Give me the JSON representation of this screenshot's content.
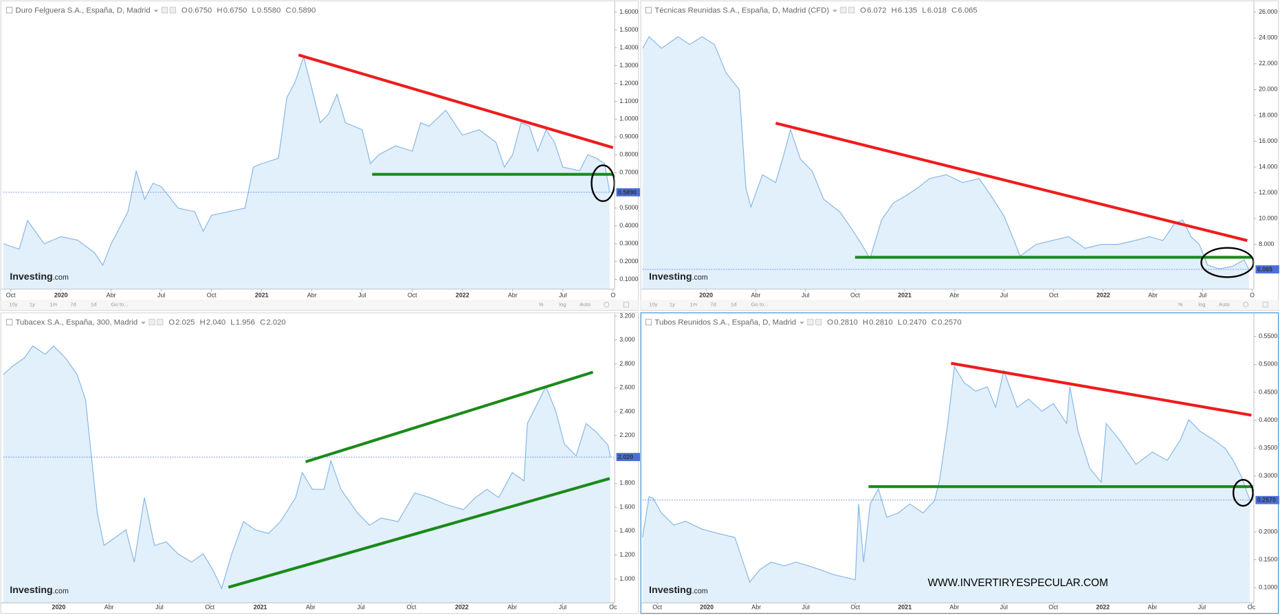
{
  "chart_data": [
    {
      "type": "area",
      "title": "Duro Felguera S.A., España, D, Madrid",
      "ohlc": [
        {
          "name": "O",
          "value": 0.675,
          "label": "0.6750"
        },
        {
          "name": "H",
          "value": 0.675,
          "label": "0.6750"
        },
        {
          "name": "L",
          "value": 0.558,
          "label": "0.5580"
        },
        {
          "name": "C",
          "value": 0.589,
          "label": "0.5890"
        }
      ],
      "color": "#86b6e6",
      "fill": "#e2f0fb",
      "x": [
        -0.45,
        0.5,
        1,
        2,
        3,
        4,
        5,
        5.5,
        6,
        7,
        7.5,
        8,
        8.5,
        9,
        10,
        11,
        11.5,
        12,
        13,
        14,
        14.5,
        15,
        16,
        16.5,
        17,
        17.5,
        18,
        18.5,
        19,
        19.5,
        20,
        21,
        21.5,
        22,
        23,
        24,
        24.5,
        25,
        26,
        27,
        28,
        29,
        29.5,
        30,
        30.5,
        31,
        31.5,
        32,
        32.5,
        33,
        34,
        34.5,
        35,
        35.5,
        35.8
      ],
      "values": [
        0.3,
        0.27,
        0.43,
        0.3,
        0.34,
        0.32,
        0.25,
        0.18,
        0.3,
        0.48,
        0.71,
        0.55,
        0.64,
        0.62,
        0.5,
        0.48,
        0.37,
        0.46,
        0.48,
        0.5,
        0.73,
        0.75,
        0.78,
        1.12,
        1.21,
        1.35,
        1.17,
        0.98,
        1.03,
        1.14,
        0.98,
        0.94,
        0.75,
        0.8,
        0.85,
        0.82,
        0.98,
        0.96,
        1.05,
        0.91,
        0.94,
        0.87,
        0.73,
        0.8,
        0.98,
        0.96,
        0.82,
        0.94,
        0.87,
        0.73,
        0.71,
        0.8,
        0.78,
        0.75,
        0.589
      ],
      "xlim": [
        -0.45,
        36.05
      ],
      "xticks": [
        {
          "value": 0,
          "label": "Oct"
        },
        {
          "value": 3,
          "label": "2020"
        },
        {
          "value": 6,
          "label": "Abr"
        },
        {
          "value": 9,
          "label": "Jul"
        },
        {
          "value": 12,
          "label": "Oct"
        },
        {
          "value": 15,
          "label": "2021"
        },
        {
          "value": 18,
          "label": "Abr"
        },
        {
          "value": 21,
          "label": "Jul"
        },
        {
          "value": 24,
          "label": "Oct"
        },
        {
          "value": 27,
          "label": "2022"
        },
        {
          "value": 30,
          "label": "Abr"
        },
        {
          "value": 33,
          "label": "Jul"
        },
        {
          "value": 36,
          "label": "O"
        }
      ],
      "ylim": [
        0.045,
        1.646
      ],
      "yticks": [
        {
          "value": 0.1,
          "label": "0.1000"
        },
        {
          "value": 0.2,
          "label": "0.2000"
        },
        {
          "value": 0.3,
          "label": "0.3000"
        },
        {
          "value": 0.4,
          "label": "0.4000"
        },
        {
          "value": 0.5,
          "label": "0.5000"
        },
        {
          "value": 0.7,
          "label": "0.7000"
        },
        {
          "value": 0.8,
          "label": "0.8000"
        },
        {
          "value": 0.9,
          "label": "0.9000"
        },
        {
          "value": 1.0,
          "label": "1.0000"
        },
        {
          "value": 1.1,
          "label": "1.1000"
        },
        {
          "value": 1.2,
          "label": "1.2000"
        },
        {
          "value": 1.3,
          "label": "1.3000"
        },
        {
          "value": 1.4,
          "label": "1.4000"
        },
        {
          "value": 1.5,
          "label": "1.5000"
        },
        {
          "value": 1.6,
          "label": "1.6000"
        }
      ],
      "last": {
        "value": 0.589,
        "label": "0.5890"
      },
      "trendlines": [
        {
          "color": "#ee1c1c",
          "x": [
            17.2,
            36
          ],
          "y": [
            1.36,
            0.84
          ]
        },
        {
          "color": "#1a8a1a",
          "x": [
            21.6,
            36
          ],
          "y": [
            0.69,
            0.69
          ]
        }
      ],
      "circles": [
        {
          "x": 35.4,
          "y": 0.64
        }
      ],
      "logo": [
        "Investing",
        ".com"
      ],
      "toolbar_left": [
        "10y",
        "1y",
        "1m",
        "7d",
        "1d",
        "Go to..."
      ],
      "toolbar_right": [
        "%",
        "log",
        "Auto"
      ]
    },
    {
      "type": "area",
      "title": "Técnicas Reunidas S.A., España, D, Madrid (CFD)",
      "ohlc": [
        {
          "name": "O",
          "value": 6.072,
          "label": "6.072"
        },
        {
          "name": "H",
          "value": 6.135,
          "label": "6.135"
        },
        {
          "name": "L",
          "value": 6.018,
          "label": "6.018"
        },
        {
          "name": "C",
          "value": 6.065,
          "label": "6.065"
        }
      ],
      "color": "#86b6e6",
      "fill": "#e2f0fb",
      "x": [
        -0.84,
        -0.45,
        0.3,
        1.3,
        2,
        2.75,
        3.5,
        4.2,
        5,
        5.4,
        5.7,
        6.4,
        7.2,
        7.7,
        8.1,
        8.7,
        9.4,
        10.1,
        11.1,
        11.9,
        12.4,
        12.9,
        13.6,
        14.3,
        15.1,
        15.8,
        16.5,
        17.5,
        18.5,
        19.5,
        20.2,
        21,
        21.7,
        21.96,
        22.95,
        23.9,
        24.9,
        25.9,
        26.9,
        27.9,
        28.9,
        29.8,
        30.6,
        31.3,
        31.8,
        32.3,
        32.8,
        33.3,
        34,
        34.8,
        35.5,
        35.8
      ],
      "values": [
        23.2,
        24.1,
        23.2,
        24.1,
        23.5,
        24.1,
        23.5,
        21.3,
        20.0,
        12.4,
        10.9,
        13.4,
        12.8,
        15.0,
        16.9,
        14.6,
        13.7,
        11.5,
        10.5,
        9.0,
        8.0,
        6.9,
        9.9,
        11.2,
        11.8,
        12.4,
        13.1,
        13.4,
        12.8,
        13.1,
        11.8,
        10.2,
        8.0,
        7.1,
        8.0,
        8.3,
        8.6,
        7.7,
        8.0,
        8.0,
        8.3,
        8.6,
        8.3,
        9.6,
        9.9,
        8.6,
        8.0,
        6.4,
        6.1,
        6.3,
        6.8,
        6.065
      ],
      "xlim": [
        -0.85,
        36.05
      ],
      "xticks": [
        {
          "value": 3,
          "label": "2020"
        },
        {
          "value": 6,
          "label": "Abr"
        },
        {
          "value": 9,
          "label": "Jul"
        },
        {
          "value": 12,
          "label": "Oct"
        },
        {
          "value": 15,
          "label": "2021"
        },
        {
          "value": 18,
          "label": "Abr"
        },
        {
          "value": 21,
          "label": "Jul"
        },
        {
          "value": 24,
          "label": "Oct"
        },
        {
          "value": 27,
          "label": "2022"
        },
        {
          "value": 30,
          "label": "Abr"
        },
        {
          "value": 33,
          "label": "Jul"
        },
        {
          "value": 36,
          "label": "O"
        }
      ],
      "ylim": [
        4.53,
        26.63
      ],
      "yticks": [
        {
          "value": 8,
          "label": "8.000"
        },
        {
          "value": 10,
          "label": "10.000"
        },
        {
          "value": 12,
          "label": "12.000"
        },
        {
          "value": 14,
          "label": "14.000"
        },
        {
          "value": 16,
          "label": "16.000"
        },
        {
          "value": 18,
          "label": "18.000"
        },
        {
          "value": 20,
          "label": "20.000"
        },
        {
          "value": 22,
          "label": "22.000"
        },
        {
          "value": 24,
          "label": "24.000"
        },
        {
          "value": 26,
          "label": "26.000"
        }
      ],
      "last": {
        "value": 6.065,
        "label": "6.065"
      },
      "trendlines": [
        {
          "color": "#ee1c1c",
          "x": [
            7.2,
            35.7
          ],
          "y": [
            17.4,
            8.3
          ]
        },
        {
          "color": "#1a8a1a",
          "x": [
            12.0,
            36.0
          ],
          "y": [
            7.0,
            7.0
          ]
        }
      ],
      "circles": [
        {
          "x": 34.5,
          "y": 6.6
        }
      ],
      "logo": [
        "Investing",
        ".com"
      ],
      "toolbar_left": [
        "10y",
        "1y",
        "1m",
        "7d",
        "1d",
        "Go to..."
      ],
      "toolbar_right": [
        "%",
        "log",
        "Auto"
      ]
    },
    {
      "type": "area",
      "title": "Tubacex S.A., España, 300, Madrid",
      "ohlc": [
        {
          "name": "O",
          "value": 2.025,
          "label": "2.025"
        },
        {
          "name": "H",
          "value": 2.04,
          "label": "2.040"
        },
        {
          "name": "L",
          "value": 1.956,
          "label": "1.956"
        },
        {
          "name": "C",
          "value": 2.02,
          "label": "2.020"
        }
      ],
      "color": "#86b6e6",
      "fill": "#e2f0fb",
      "x": [
        -0.3,
        0.25,
        0.97,
        1.45,
        2.2,
        2.7,
        3.4,
        4.1,
        4.6,
        4.9,
        5.3,
        5.7,
        6.3,
        7,
        7.5,
        8.1,
        8.7,
        9.4,
        10.1,
        10.9,
        11.6,
        12.2,
        12.7,
        13.3,
        14,
        14.7,
        15.5,
        16.2,
        17.1,
        17.5,
        18.1,
        18.8,
        19.2,
        19.8,
        20.8,
        21.5,
        22.2,
        23.2,
        24.2,
        25.1,
        26.1,
        27.1,
        27.8,
        28.5,
        29.2,
        30,
        30.7,
        30.9,
        31.4,
        32,
        32.6,
        33.1,
        33.8,
        34.4,
        35,
        35.7,
        35.85
      ],
      "values": [
        2.71,
        2.78,
        2.85,
        2.95,
        2.88,
        2.95,
        2.85,
        2.71,
        2.5,
        2.09,
        1.55,
        1.28,
        1.34,
        1.41,
        1.14,
        1.68,
        1.28,
        1.31,
        1.21,
        1.14,
        1.21,
        1.07,
        0.92,
        1.21,
        1.48,
        1.41,
        1.38,
        1.48,
        1.68,
        1.89,
        1.75,
        1.75,
        1.99,
        1.75,
        1.55,
        1.45,
        1.51,
        1.48,
        1.72,
        1.68,
        1.62,
        1.58,
        1.68,
        1.75,
        1.68,
        1.89,
        1.82,
        2.3,
        2.44,
        2.61,
        2.4,
        2.13,
        2.03,
        2.3,
        2.23,
        2.12,
        2.02
      ],
      "xlim": [
        -0.3,
        36.05
      ],
      "xticks": [
        {
          "value": 3,
          "label": "2020"
        },
        {
          "value": 6,
          "label": "Abr"
        },
        {
          "value": 9,
          "label": "Jul"
        },
        {
          "value": 12,
          "label": "Oct"
        },
        {
          "value": 15,
          "label": "2021"
        },
        {
          "value": 18,
          "label": "Abr"
        },
        {
          "value": 21,
          "label": "Jul"
        },
        {
          "value": 24,
          "label": "Oct"
        },
        {
          "value": 27,
          "label": "2022"
        },
        {
          "value": 30,
          "label": "Abr"
        },
        {
          "value": 33,
          "label": "Jul"
        },
        {
          "value": 36,
          "label": "Oc"
        }
      ],
      "ylim": [
        0.8,
        3.234
      ],
      "yticks": [
        {
          "value": 1.0,
          "label": "1.000"
        },
        {
          "value": 1.2,
          "label": "1.200"
        },
        {
          "value": 1.4,
          "label": "1.400"
        },
        {
          "value": 1.6,
          "label": "1.600"
        },
        {
          "value": 1.8,
          "label": "1.800"
        },
        {
          "value": 2.2,
          "label": "2.200"
        },
        {
          "value": 2.4,
          "label": "2.400"
        },
        {
          "value": 2.6,
          "label": "2.600"
        },
        {
          "value": 2.8,
          "label": "2.800"
        },
        {
          "value": 3.0,
          "label": "3.000"
        },
        {
          "value": 3.2,
          "label": "3.200"
        }
      ],
      "last": {
        "value": 2.02,
        "label": "2.020"
      },
      "trendlines": [
        {
          "color": "#1a8a1a",
          "x": [
            17.7,
            34.8
          ],
          "y": [
            1.98,
            2.73
          ]
        },
        {
          "color": "#1a8a1a",
          "x": [
            13.1,
            35.8
          ],
          "y": [
            0.93,
            1.84
          ]
        }
      ],
      "circles": [],
      "logo": [
        "Investing",
        ".com"
      ]
    },
    {
      "type": "area",
      "title": "Tubos Reunidos S.A., España, D, Madrid",
      "ohlc": [
        {
          "name": "O",
          "value": 0.281,
          "label": "0.2810"
        },
        {
          "name": "H",
          "value": 0.281,
          "label": "0.2810"
        },
        {
          "name": "L",
          "value": 0.247,
          "label": "0.2470"
        },
        {
          "name": "C",
          "value": 0.257,
          "label": "0.2570"
        }
      ],
      "color": "#86b6e6",
      "fill": "#e2f0fb",
      "x": [
        -0.9,
        -0.5,
        -0.25,
        0.25,
        1,
        1.7,
        2.7,
        3.7,
        4.7,
        5.2,
        5.6,
        6.2,
        6.9,
        7.7,
        8.4,
        9.2,
        9.9,
        10.6,
        11.6,
        12,
        12.2,
        12.5,
        12.9,
        13.4,
        13.9,
        14.6,
        15.3,
        16.1,
        16.8,
        17.1,
        17.6,
        18,
        18.6,
        19.3,
        20,
        20.5,
        21,
        21.8,
        22.5,
        23.3,
        24,
        24.8,
        25,
        25.5,
        26.2,
        26.9,
        27.2,
        28,
        29,
        30,
        30.9,
        31.7,
        32.2,
        32.9,
        33.7,
        34.4,
        34.9,
        35.4,
        35.9
      ],
      "values": [
        0.19,
        0.263,
        0.26,
        0.234,
        0.212,
        0.219,
        0.205,
        0.197,
        0.19,
        0.146,
        0.11,
        0.132,
        0.146,
        0.139,
        0.146,
        0.139,
        0.132,
        0.124,
        0.117,
        0.114,
        0.25,
        0.146,
        0.25,
        0.277,
        0.226,
        0.234,
        0.25,
        0.234,
        0.256,
        0.292,
        0.394,
        0.496,
        0.467,
        0.452,
        0.46,
        0.423,
        0.489,
        0.423,
        0.438,
        0.416,
        0.43,
        0.394,
        0.46,
        0.38,
        0.314,
        0.289,
        0.394,
        0.365,
        0.321,
        0.343,
        0.328,
        0.365,
        0.401,
        0.38,
        0.365,
        0.35,
        0.328,
        0.299,
        0.257
      ],
      "xlim": [
        -0.9,
        36.1
      ],
      "xticks": [
        {
          "value": 0,
          "label": "Oct"
        },
        {
          "value": 3,
          "label": "2020"
        },
        {
          "value": 6,
          "label": "Abr"
        },
        {
          "value": 9,
          "label": "Jul"
        },
        {
          "value": 12,
          "label": "Oct"
        },
        {
          "value": 15,
          "label": "2021"
        },
        {
          "value": 18,
          "label": "Abr"
        },
        {
          "value": 21,
          "label": "Jul"
        },
        {
          "value": 24,
          "label": "Oct"
        },
        {
          "value": 27,
          "label": "2022"
        },
        {
          "value": 30,
          "label": "Abr"
        },
        {
          "value": 33,
          "label": "Jul"
        },
        {
          "value": 36,
          "label": "Oc"
        }
      ],
      "ylim": [
        0.073,
        0.591
      ],
      "yticks": [
        {
          "value": 0.1,
          "label": "0.1000"
        },
        {
          "value": 0.15,
          "label": "0.1500"
        },
        {
          "value": 0.2,
          "label": "0.2000"
        },
        {
          "value": 0.3,
          "label": "0.3000"
        },
        {
          "value": 0.35,
          "label": "0.3500"
        },
        {
          "value": 0.4,
          "label": "0.4000"
        },
        {
          "value": 0.45,
          "label": "0.4500"
        },
        {
          "value": 0.5,
          "label": "0.5000"
        },
        {
          "value": 0.55,
          "label": "0.5500"
        }
      ],
      "last": {
        "value": 0.257,
        "label": "0.2570"
      },
      "trendlines": [
        {
          "color": "#ee1c1c",
          "x": [
            17.8,
            36
          ],
          "y": [
            0.502,
            0.409
          ]
        },
        {
          "color": "#1a8a1a",
          "x": [
            12.8,
            36.1
          ],
          "y": [
            0.281,
            0.281
          ]
        }
      ],
      "circles": [
        {
          "x": 35.5,
          "y": 0.27
        }
      ],
      "logo": [
        "Investing",
        ".com"
      ],
      "watermark": "WWW.INVERTIRYESPECULAR.COM"
    }
  ]
}
